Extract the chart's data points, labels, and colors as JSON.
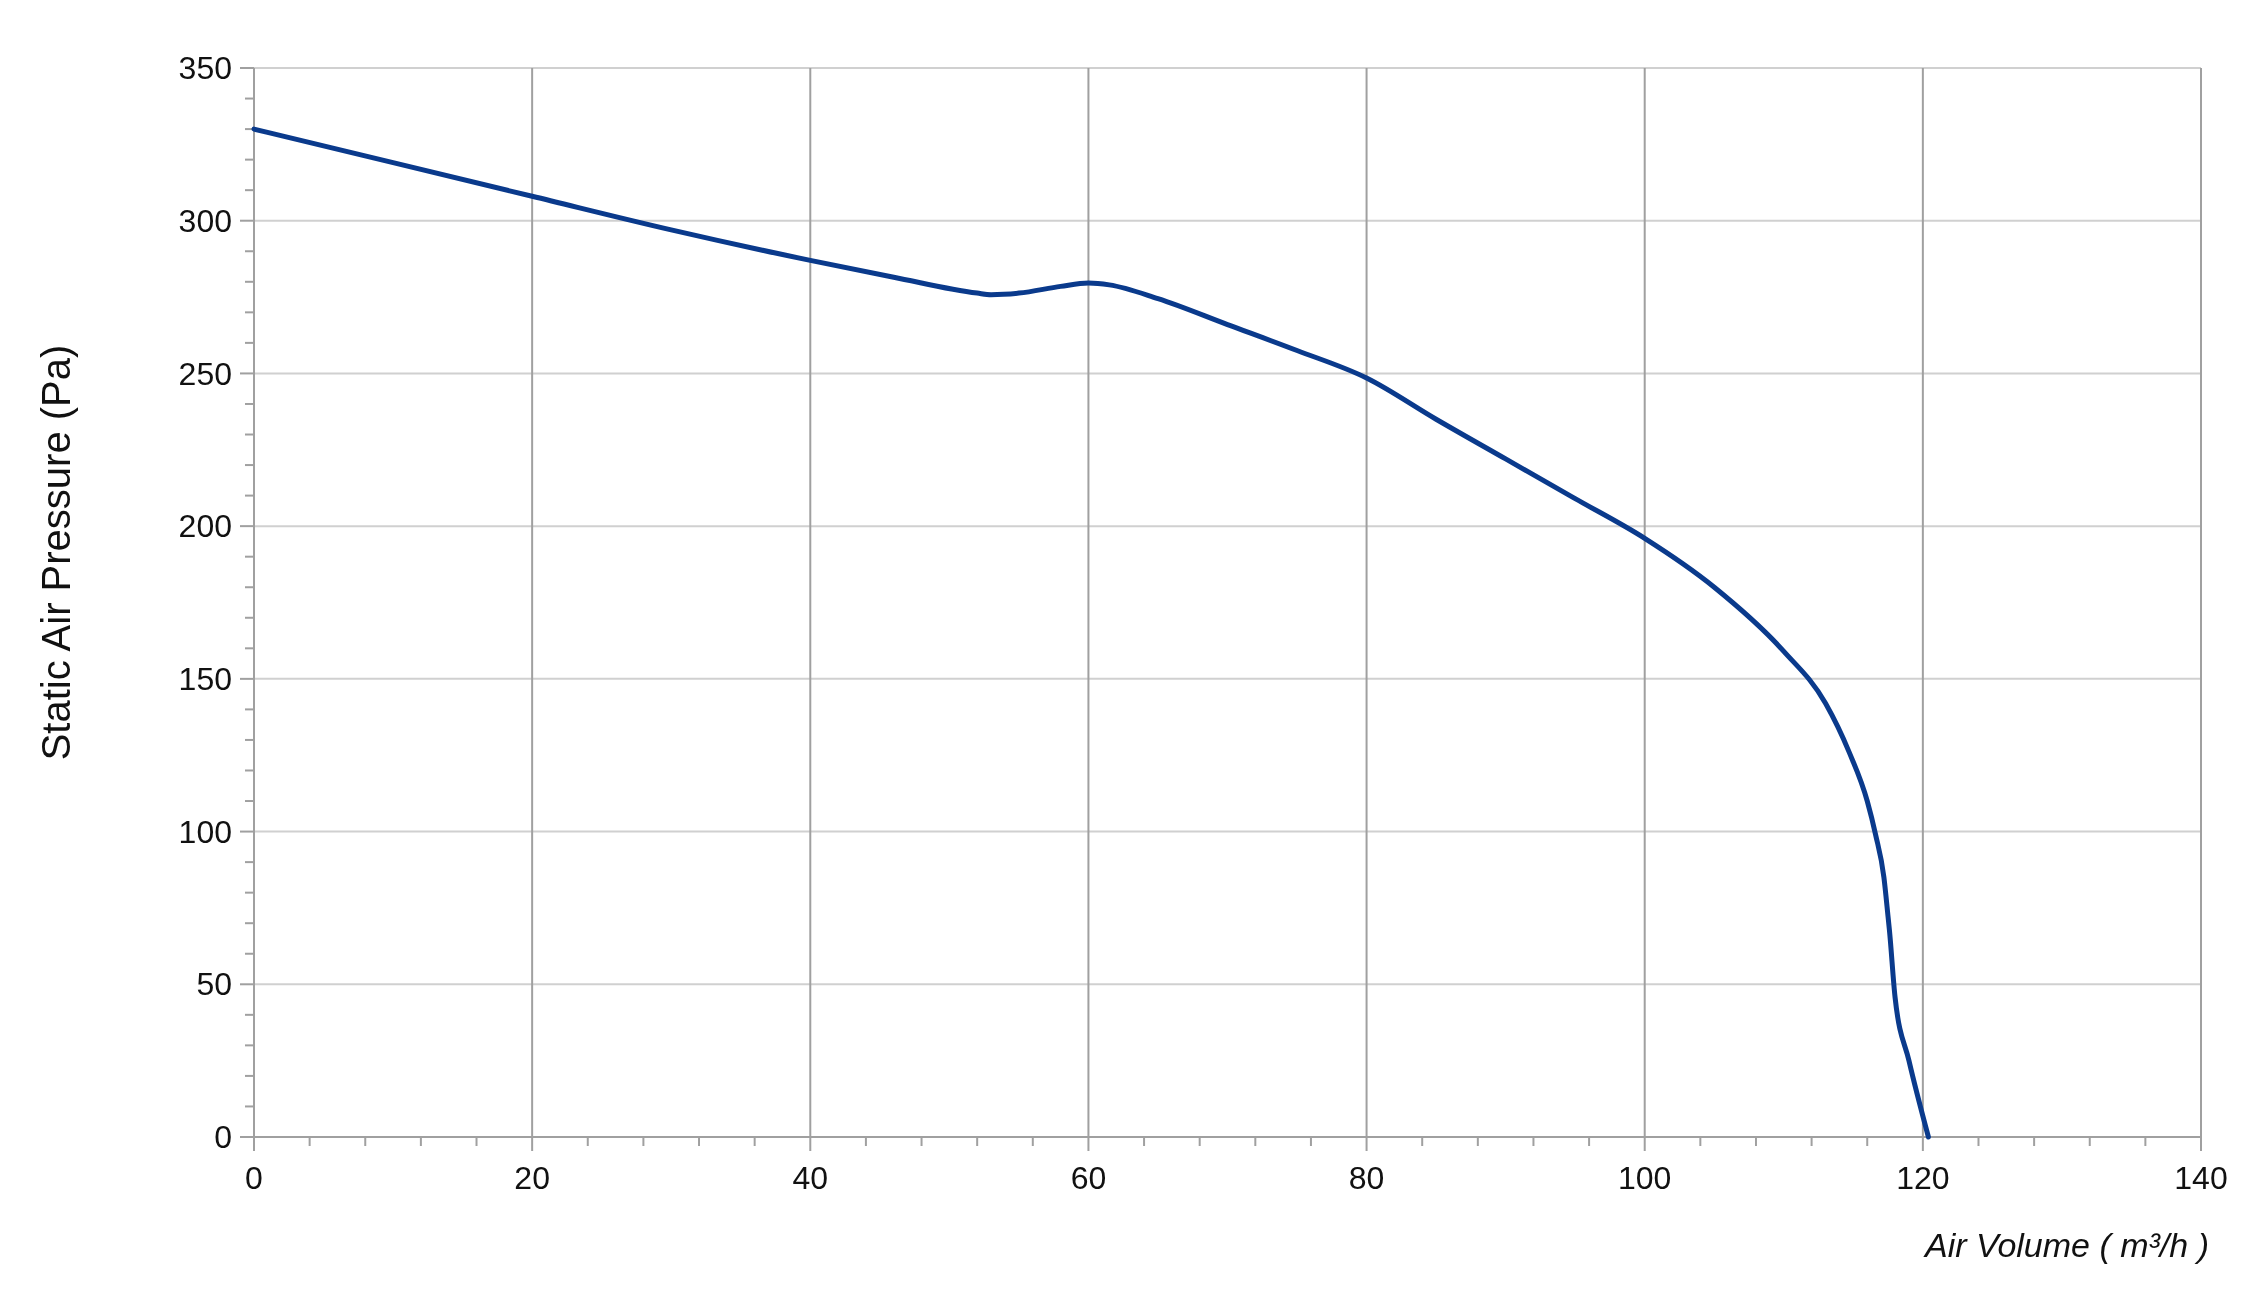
{
  "chart_data": {
    "type": "line",
    "xlabel": "Air Volume ( m³/h )",
    "ylabel": "Static Air Pressure  (Pa)",
    "xlim": [
      0,
      140
    ],
    "ylim": [
      0,
      350
    ],
    "xticks": [
      0,
      {
        "value": 4,
        "label": null
      },
      {
        "value": 8,
        "label": null
      },
      {
        "value": 12,
        "label": null
      },
      {
        "value": 16,
        "label": null
      },
      20,
      {
        "value": 24,
        "label": null
      },
      {
        "value": 28,
        "label": null
      },
      {
        "value": 32,
        "label": null
      },
      {
        "value": 36,
        "label": null
      },
      40,
      {
        "value": 44,
        "label": null
      },
      {
        "value": 48,
        "label": null
      },
      {
        "value": 52,
        "label": null
      },
      {
        "value": 56,
        "label": null
      },
      60,
      {
        "value": 64,
        "label": null
      },
      {
        "value": 68,
        "label": null
      },
      {
        "value": 72,
        "label": null
      },
      {
        "value": 76,
        "label": null
      },
      80,
      {
        "value": 84,
        "label": null
      },
      {
        "value": 88,
        "label": null
      },
      {
        "value": 92,
        "label": null
      },
      {
        "value": 96,
        "label": null
      },
      100,
      {
        "value": 104,
        "label": null
      },
      {
        "value": 108,
        "label": null
      },
      {
        "value": 112,
        "label": null
      },
      {
        "value": 116,
        "label": null
      },
      120,
      {
        "value": 124,
        "label": null
      },
      {
        "value": 128,
        "label": null
      },
      {
        "value": 132,
        "label": null
      },
      {
        "value": 136,
        "label": null
      },
      140
    ],
    "yticks": [
      0,
      {
        "value": 10,
        "label": null
      },
      {
        "value": 20,
        "label": null
      },
      {
        "value": 30,
        "label": null
      },
      {
        "value": 40,
        "label": null
      },
      50,
      {
        "value": 60,
        "label": null
      },
      {
        "value": 70,
        "label": null
      },
      {
        "value": 80,
        "label": null
      },
      {
        "value": 90,
        "label": null
      },
      100,
      {
        "value": 110,
        "label": null
      },
      {
        "value": 120,
        "label": null
      },
      {
        "value": 130,
        "label": null
      },
      {
        "value": 140,
        "label": null
      },
      150,
      {
        "value": 160,
        "label": null
      },
      {
        "value": 170,
        "label": null
      },
      {
        "value": 180,
        "label": null
      },
      {
        "value": 190,
        "label": null
      },
      200,
      {
        "value": 210,
        "label": null
      },
      {
        "value": 220,
        "label": null
      },
      {
        "value": 230,
        "label": null
      },
      {
        "value": 240,
        "label": null
      },
      250,
      {
        "value": 260,
        "label": null
      },
      {
        "value": 270,
        "label": null
      },
      {
        "value": 280,
        "label": null
      },
      {
        "value": 290,
        "label": null
      },
      300,
      {
        "value": 310,
        "label": null
      },
      {
        "value": 320,
        "label": null
      },
      {
        "value": 330,
        "label": null
      },
      {
        "value": 340,
        "label": null
      },
      350
    ],
    "grid": true,
    "marker": "none",
    "line_style": "solid",
    "series": [
      {
        "color": "#0a3a8c",
        "x": [
          0,
          10,
          20,
          30,
          40,
          46,
          52,
          53,
          55,
          58,
          60,
          61.5,
          65,
          70,
          75,
          80,
          85,
          90,
          95,
          100,
          105,
          110,
          113,
          114.7,
          116,
          116.6,
          117.2,
          117.5,
          117.6,
          118,
          119,
          120.4
        ],
        "values": [
          330,
          319,
          308,
          297,
          287,
          281.5,
          276.3,
          275.8,
          276.3,
          278.5,
          279.6,
          279,
          274.5,
          266,
          257.5,
          248.5,
          235,
          222,
          209,
          196,
          180,
          159,
          142,
          126,
          110,
          99,
          85,
          72,
          67.5,
          45.8,
          25,
          0
        ]
      }
    ]
  }
}
